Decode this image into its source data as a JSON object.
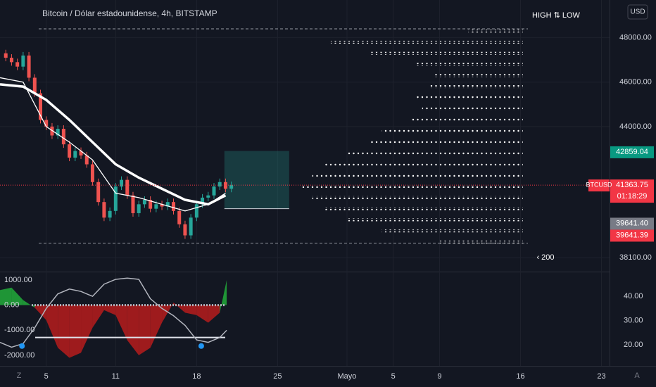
{
  "chart_data": [
    {
      "type": "candlestick",
      "title": "Bitcoin / Dólar estadounidense, 4h, BITSTAMP",
      "currency": "USD",
      "legend_title": "HIGH ⇅ LOW",
      "scale_label": "‹ 200",
      "symbol_tag": "BTCUSD",
      "countdown": "01:18:29",
      "corner_labels": [
        "Z",
        "A"
      ],
      "x": [
        0.5,
        1,
        1.5,
        2,
        2.5,
        3,
        3.5,
        4,
        4.5,
        5,
        5.5,
        6,
        6.5,
        7,
        7.5,
        8,
        8.5,
        9,
        9.5,
        10,
        10.5,
        11,
        11.5,
        12,
        12.5,
        13,
        13.5,
        14,
        14.5,
        15,
        15.5,
        16,
        16.5,
        17,
        17.5,
        18,
        18.5,
        19,
        19.5,
        20
      ],
      "open": [
        47300,
        47100,
        46900,
        46700,
        47200,
        46200,
        45500,
        44300,
        44000,
        43600,
        43900,
        43200,
        42600,
        42900,
        42700,
        42300,
        41500,
        40600,
        39900,
        40200,
        41300,
        41600,
        40900,
        40100,
        40500,
        40700,
        40300,
        40500,
        40400,
        40600,
        40200,
        39600,
        39100,
        39900,
        40500,
        40800,
        40900,
        41300,
        41500,
        41200
      ],
      "close": [
        47100,
        46900,
        46700,
        47200,
        46200,
        45500,
        44300,
        44000,
        43600,
        43900,
        43200,
        42600,
        42900,
        42700,
        42300,
        41500,
        40600,
        39900,
        40200,
        41300,
        41600,
        40900,
        40100,
        40500,
        40700,
        40300,
        40500,
        40400,
        40600,
        40200,
        39600,
        39100,
        39900,
        40500,
        40800,
        40900,
        41300,
        41500,
        41200,
        41363.75
      ],
      "up_color": "#26a69a",
      "down_color": "#ef5350",
      "ma": [
        {
          "x": [
            0,
            2,
            4,
            6,
            8,
            10,
            12,
            14,
            16,
            18,
            19.5
          ],
          "values": [
            45900,
            45800,
            45200,
            44300,
            43300,
            42300,
            41700,
            41200,
            40700,
            40500,
            40900
          ],
          "width": 3.5
        },
        {
          "x": [
            0,
            2,
            4,
            6,
            8,
            10,
            12,
            14,
            16,
            18,
            19.5
          ],
          "values": [
            46200,
            46000,
            44000,
            43300,
            42500,
            41000,
            40800,
            40500,
            40200,
            40500,
            41000
          ],
          "width": 1.3
        }
      ],
      "levels": [
        48400,
        38750
      ],
      "box": {
        "x": [
          19.4,
          25
        ],
        "y": [
          40300,
          42900
        ]
      },
      "profile": {
        "prices": [
          48300,
          47800,
          47300,
          46800,
          46300,
          45800,
          45300,
          44800,
          44300,
          43800,
          43300,
          42800,
          42300,
          41800,
          41300,
          40800,
          40300,
          39800,
          39300,
          38800
        ],
        "start": [
          40.5,
          28.6,
          32,
          36,
          37.5,
          37,
          36,
          36.5,
          35.5,
          33,
          32,
          30,
          28,
          27,
          26,
          27,
          28,
          30,
          33,
          38
        ],
        "end": 45.2
      },
      "tags": [
        {
          "value": 42859.04,
          "label": "42859.04",
          "color": "#089981"
        },
        {
          "value": 41363.75,
          "label": "41363.75",
          "color": "#f23645"
        },
        {
          "value": 39641.4,
          "label": "39641.40",
          "color": "#787b86"
        },
        {
          "value": 39641.39,
          "label": "39641.39",
          "color": "#f23645"
        }
      ],
      "xlim": [
        0,
        52.7
      ],
      "xticks": [
        {
          "value": 4,
          "label": "5"
        },
        {
          "value": 10,
          "label": "11"
        },
        {
          "value": 17,
          "label": "18"
        },
        {
          "value": 24,
          "label": "25"
        },
        {
          "value": 30,
          "label": "Mayo"
        },
        {
          "value": 34,
          "label": "5"
        },
        {
          "value": 38,
          "label": "9"
        },
        {
          "value": 45,
          "label": "16"
        },
        {
          "value": 52,
          "label": "23"
        }
      ],
      "ylim": [
        37500,
        49700
      ],
      "yticks": [
        {
          "value": 38100,
          "label": "38100.00"
        },
        {
          "value": 44000,
          "label": "44000.00"
        },
        {
          "value": 46000,
          "label": "46000.00"
        },
        {
          "value": 48000,
          "label": "48000.00"
        }
      ]
    },
    {
      "type": "oscillator",
      "x": [
        0,
        1,
        2,
        3,
        4,
        5,
        6,
        7,
        8,
        9,
        10,
        11,
        12,
        13,
        14,
        15,
        16,
        17,
        18,
        19,
        19.6
      ],
      "values": [
        600,
        700,
        200,
        -100,
        -600,
        -1700,
        -2100,
        -1900,
        -900,
        -200,
        -400,
        -1400,
        -2000,
        -1700,
        -700,
        100,
        -300,
        -400,
        -700,
        -300,
        1000
      ],
      "pos_color": "#22ab3a",
      "neg_color": "#b71c1c",
      "ylim": [
        -2423,
        1282
      ],
      "yticks": [
        {
          "value": 1000,
          "label": "1000.00"
        },
        {
          "value": 0,
          "label": "0.00"
        },
        {
          "value": -1000,
          "label": "-1000.00"
        },
        {
          "value": -2000,
          "label": "-2000.00"
        }
      ],
      "line": {
        "x": [
          0,
          1,
          2,
          3,
          4,
          5,
          6,
          7,
          8,
          9,
          10,
          11,
          12,
          13,
          14,
          15,
          16,
          17,
          18,
          19,
          19.6
        ],
        "values": [
          21,
          19,
          20.5,
          27,
          35,
          41,
          43,
          42,
          40,
          45,
          47,
          47.5,
          47,
          39,
          35,
          32,
          28,
          22,
          21,
          23,
          26
        ],
        "axis": "y2"
      },
      "levels": [
        23
      ],
      "signals": {
        "x": [
          1.9,
          17.4
        ],
        "values": [
          19.5,
          19.5
        ],
        "color": "#2196f3"
      },
      "y2lim": [
        11.3,
        49.6
      ],
      "y2ticks": [
        {
          "value": 20,
          "label": "20.00"
        },
        {
          "value": 30,
          "label": "30.00"
        },
        {
          "value": 40,
          "label": "40.00"
        }
      ]
    }
  ]
}
